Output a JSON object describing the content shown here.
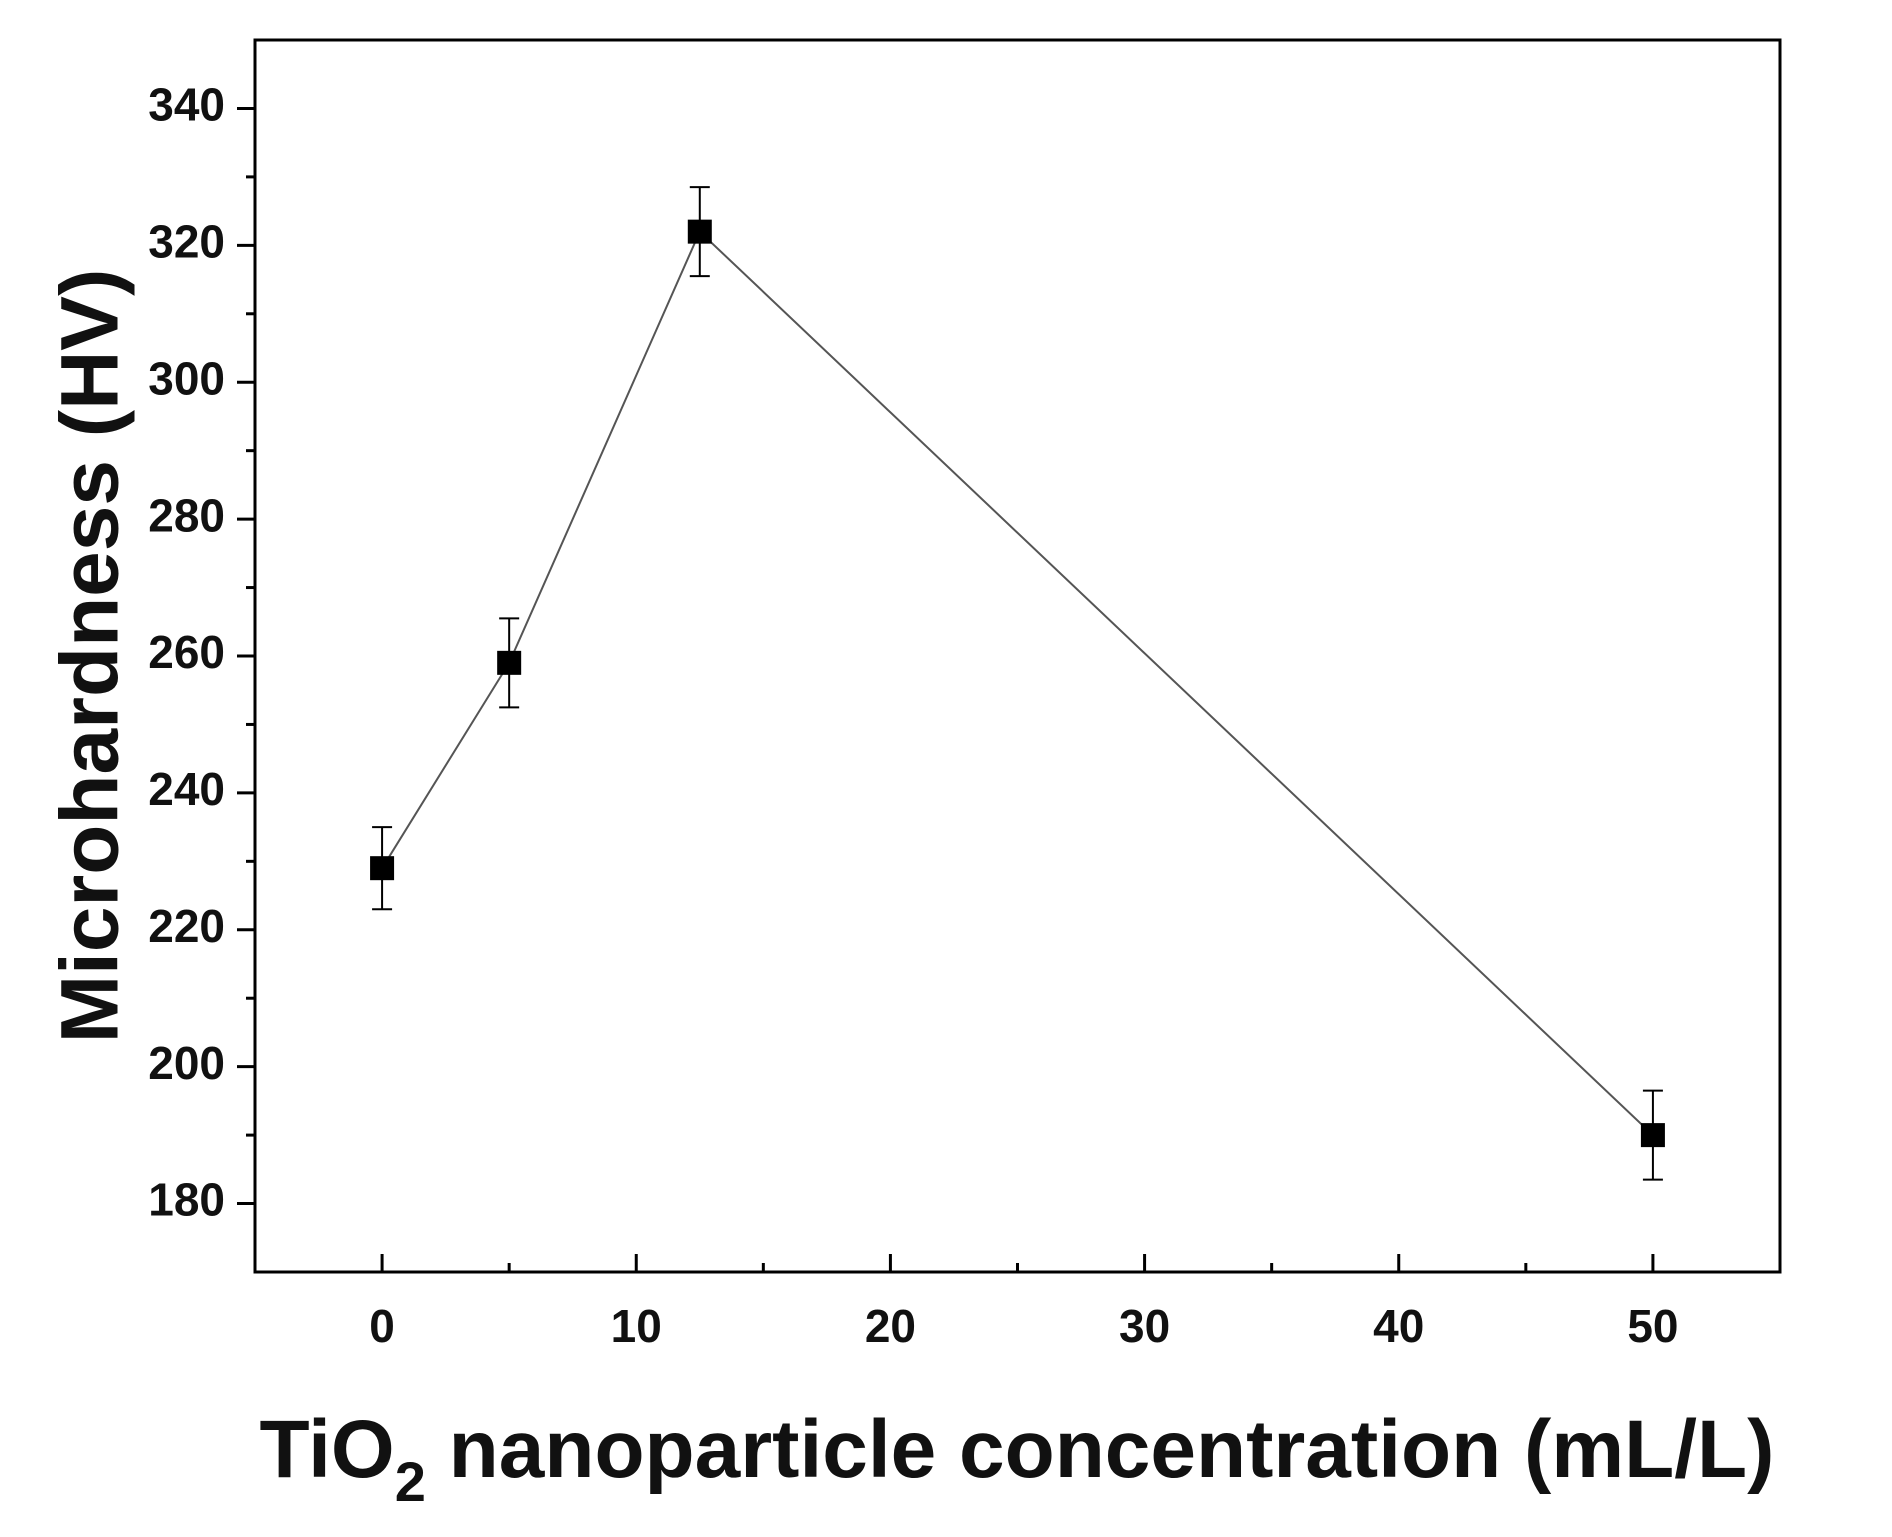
{
  "chart_data": {
    "type": "line",
    "title": "",
    "xlabel": {
      "prefix": "TiO",
      "subscript": "2",
      "suffix": " nanoparticle concentration (mL/L)"
    },
    "ylabel": "Microhardness (HV)",
    "xlim": [
      -5,
      55
    ],
    "ylim": [
      170,
      350
    ],
    "xticks": [
      0,
      10,
      20,
      30,
      40,
      50
    ],
    "xticks_minor": [
      5,
      15,
      25,
      35,
      45
    ],
    "yticks": [
      180,
      200,
      220,
      240,
      260,
      280,
      300,
      320,
      340
    ],
    "yticks_minor": [
      190,
      210,
      230,
      250,
      270,
      290,
      310,
      330
    ],
    "grid": false,
    "legend": "none",
    "marker": "square",
    "colors": {
      "line": "#555555",
      "marker": "#000000",
      "axis": "#000000"
    },
    "series": [
      {
        "x": [
          0,
          5,
          12.5,
          50
        ],
        "y": [
          229,
          259,
          322,
          190
        ],
        "error": [
          6,
          6.5,
          6.5,
          6.5
        ]
      }
    ]
  }
}
